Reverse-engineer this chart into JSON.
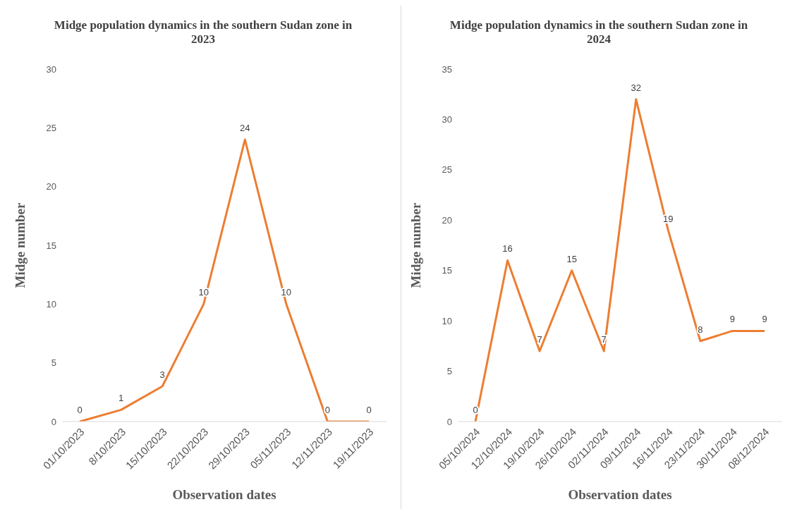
{
  "chart_data": [
    {
      "type": "line",
      "title": "Midge population dynamics in the southern Sudan zone in 2023",
      "xlabel": "Observation dates",
      "ylabel": "Midge number",
      "categories": [
        "01/10/2023",
        "8/10/2023",
        "15/10/2023",
        "22/10/2023",
        "29/10/2023",
        "05/11/2023",
        "12/11/2023",
        "19/11/2023"
      ],
      "series": [
        {
          "color": "#ed7d31",
          "values": [
            0,
            1,
            3,
            10,
            24,
            10,
            0,
            0
          ]
        }
      ],
      "ylim": [
        0,
        30
      ],
      "yticks": [
        0,
        5,
        10,
        15,
        20,
        25,
        30
      ],
      "grid": false,
      "data_labels": true,
      "marker": "none",
      "line_style": "solid"
    },
    {
      "type": "line",
      "title": "Midge population dynamics in the southern Sudan zone in 2024",
      "xlabel": "Observation dates",
      "ylabel": "Midge number",
      "categories": [
        "05/10/2024",
        "12/10/2024",
        "19/10/2024",
        "26/10/2024",
        "02/11/2024",
        "09/11/2024",
        "16/11/2024",
        "23/11/2024",
        "30/11/2024",
        "08/12/2024"
      ],
      "series": [
        {
          "color": "#ed7d31",
          "values": [
            0,
            16,
            7,
            15,
            7,
            32,
            19,
            8,
            9,
            9
          ]
        }
      ],
      "ylim": [
        0,
        35
      ],
      "yticks": [
        0,
        5,
        10,
        15,
        20,
        25,
        30,
        35
      ],
      "grid": false,
      "data_labels": true,
      "marker": "none",
      "line_style": "solid"
    }
  ]
}
